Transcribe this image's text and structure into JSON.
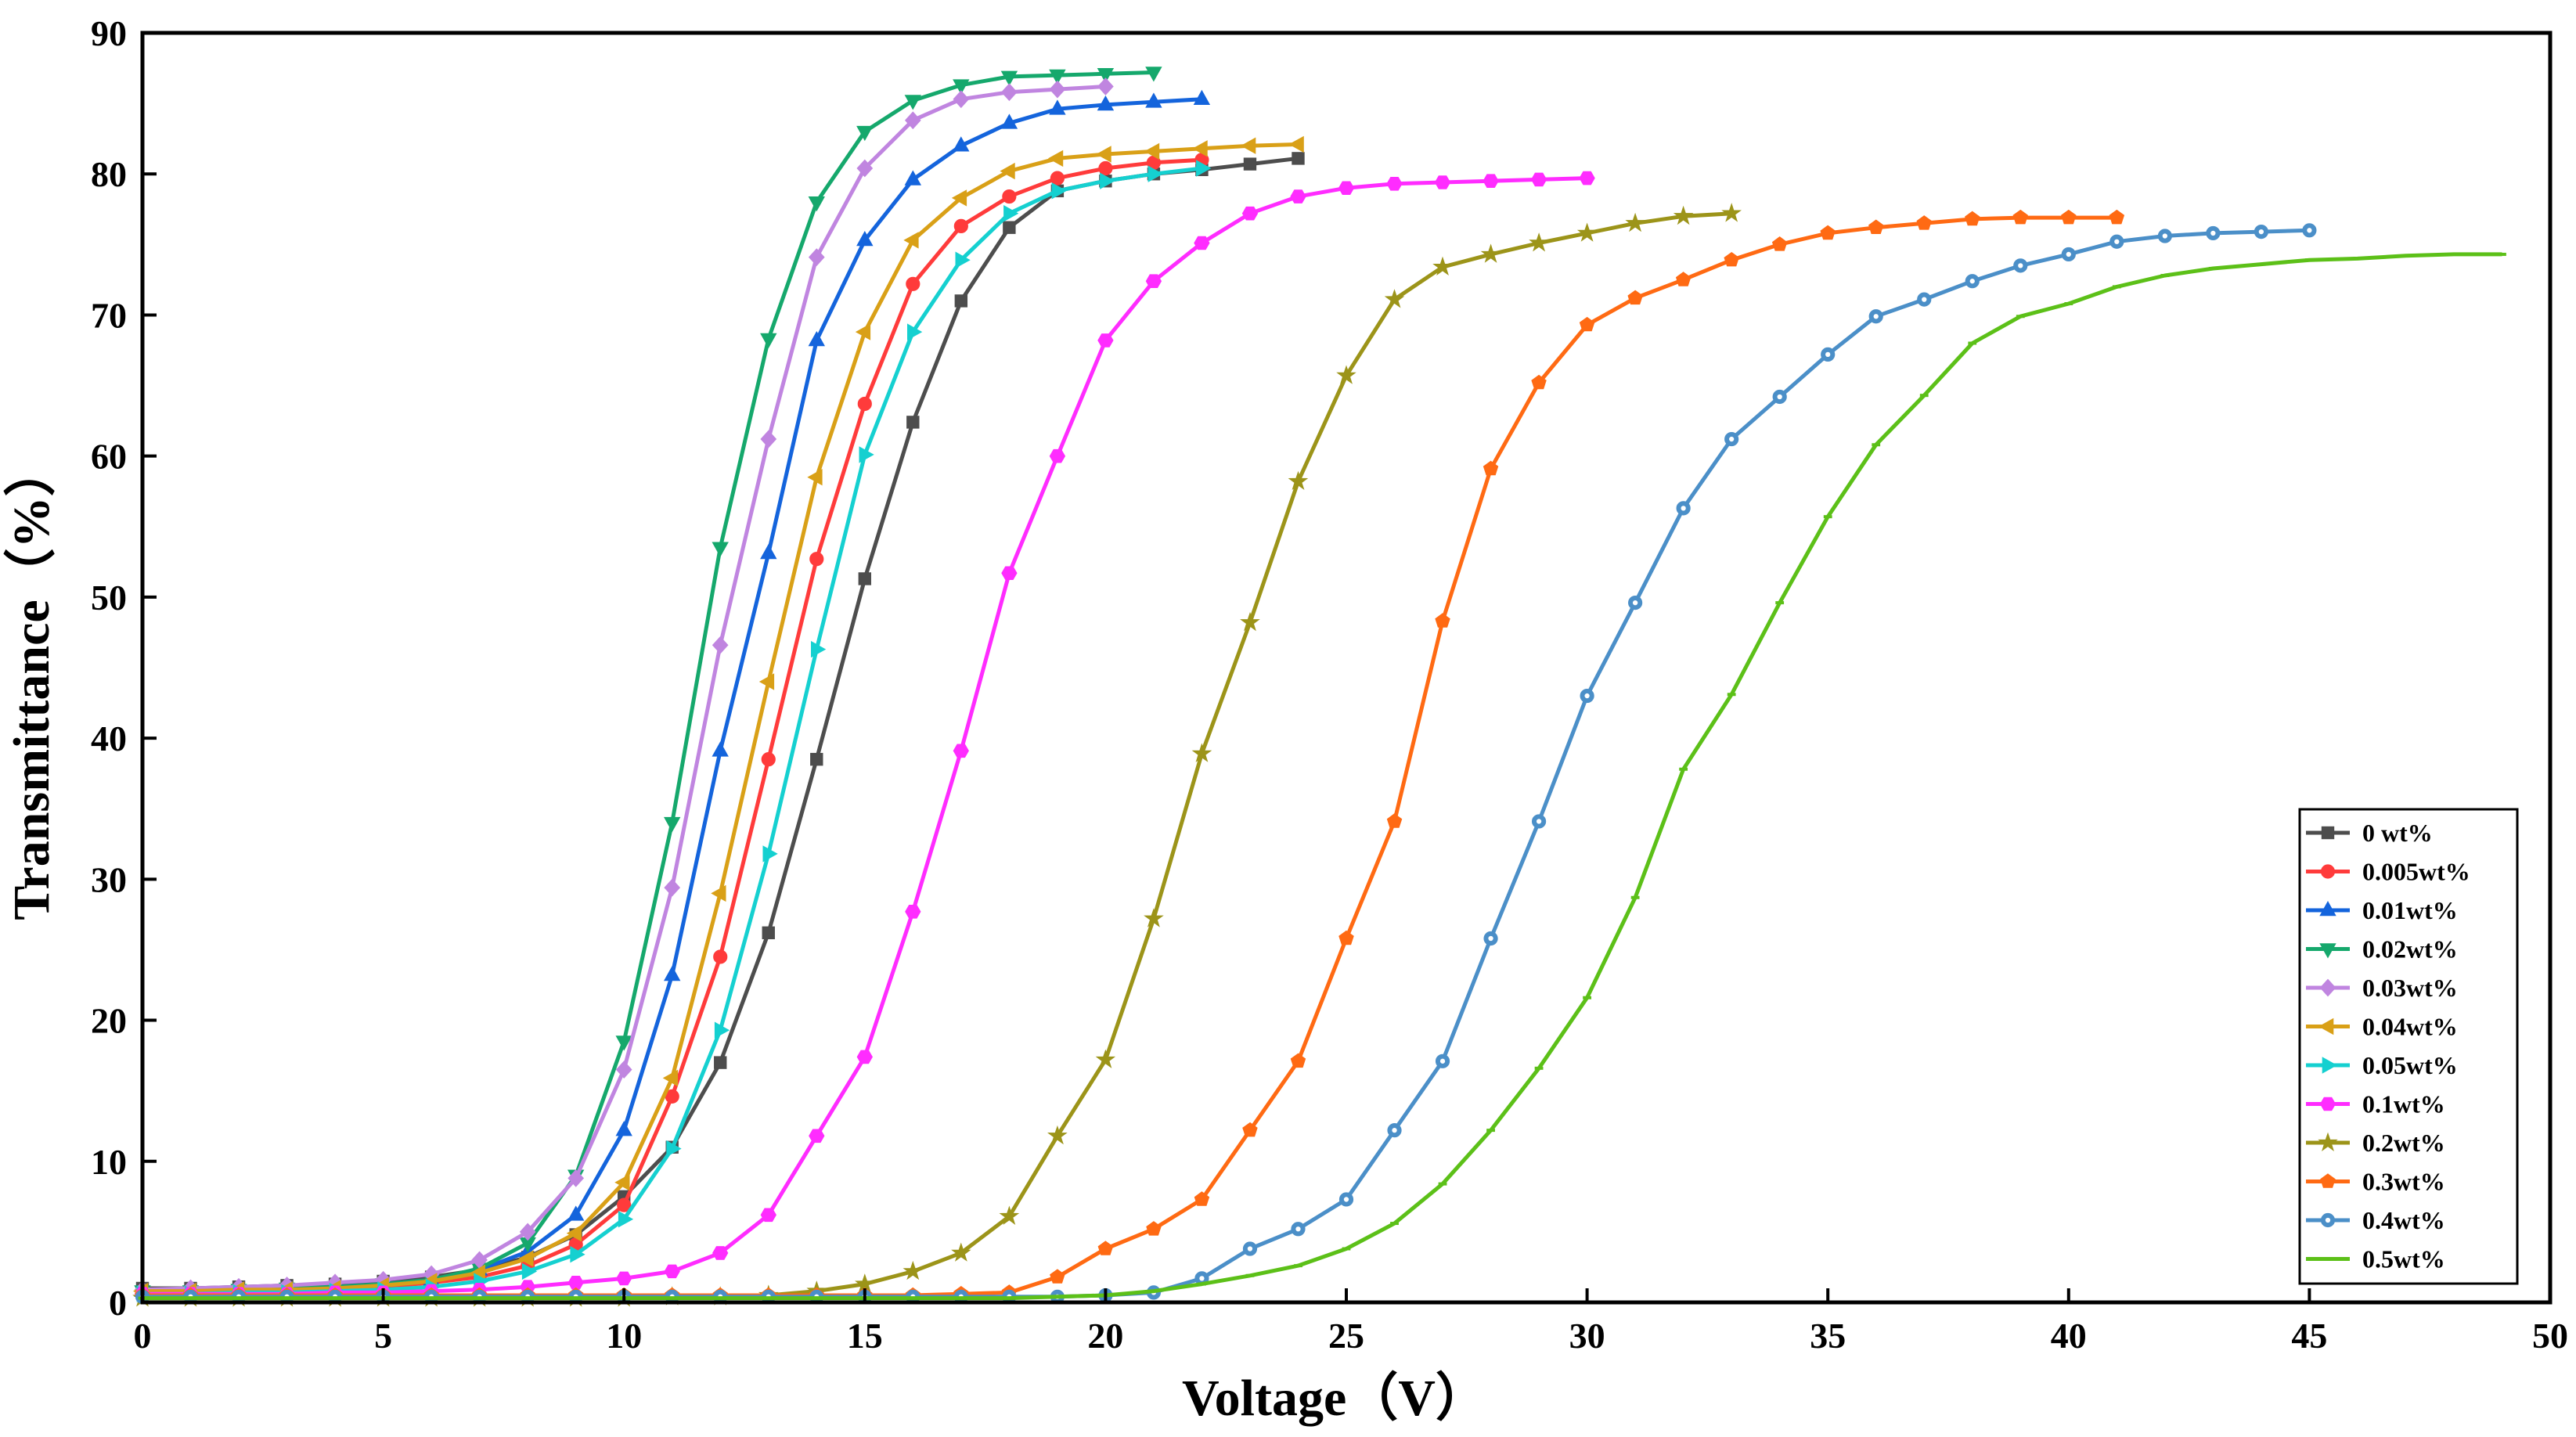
{
  "chart_data": {
    "type": "line",
    "title": "",
    "xlabel": "Voltage（V）",
    "ylabel": "Transmittance（%）",
    "xlim": [
      0,
      50
    ],
    "ylim": [
      0,
      90
    ],
    "xticks": [
      0,
      5,
      10,
      15,
      20,
      25,
      30,
      35,
      40,
      45,
      50
    ],
    "yticks": [
      0,
      10,
      20,
      30,
      40,
      50,
      60,
      70,
      80,
      90
    ],
    "grid": false,
    "legend_position": "bottom-right",
    "series": [
      {
        "name": "0 wt%",
        "color": "#4d4d4d",
        "marker": "square",
        "x": [
          0,
          1,
          2,
          3,
          4,
          5,
          6,
          7,
          8,
          9,
          10,
          11,
          12,
          13,
          14,
          15,
          16,
          17,
          18,
          19,
          20,
          21,
          22,
          23,
          24
        ],
        "y": [
          1.0,
          1.0,
          1.1,
          1.2,
          1.3,
          1.5,
          1.8,
          2.3,
          3.2,
          4.8,
          7.5,
          11.0,
          17.0,
          26.2,
          38.5,
          51.3,
          62.4,
          71.0,
          76.2,
          78.8,
          79.5,
          80.0,
          80.3,
          80.7,
          81.1
        ]
      },
      {
        "name": "0.005wt%",
        "color": "#ff3b3b",
        "marker": "circle",
        "x": [
          0,
          1,
          2,
          3,
          4,
          5,
          6,
          7,
          8,
          9,
          10,
          11,
          12,
          13,
          14,
          15,
          16,
          17,
          18,
          19,
          20,
          21,
          22
        ],
        "y": [
          0.8,
          0.8,
          0.9,
          0.9,
          1.0,
          1.1,
          1.4,
          1.8,
          2.6,
          4.1,
          6.9,
          14.6,
          24.5,
          38.5,
          52.7,
          63.7,
          72.2,
          76.3,
          78.4,
          79.7,
          80.4,
          80.8,
          81.0
        ]
      },
      {
        "name": "0.01wt%",
        "color": "#1464dc",
        "marker": "triangle-up",
        "x": [
          0,
          1,
          2,
          3,
          4,
          5,
          6,
          7,
          8,
          9,
          10,
          11,
          12,
          13,
          14,
          15,
          16,
          17,
          18,
          19,
          20,
          21,
          22
        ],
        "y": [
          0.8,
          0.8,
          0.9,
          1.0,
          1.1,
          1.3,
          1.6,
          2.3,
          3.6,
          6.2,
          12.2,
          23.2,
          39.1,
          53.1,
          68.2,
          75.3,
          79.6,
          82.0,
          83.6,
          84.6,
          84.9,
          85.1,
          85.3
        ]
      },
      {
        "name": "0.02wt%",
        "color": "#15a86c",
        "marker": "triangle-down",
        "x": [
          0,
          1,
          2,
          3,
          4,
          5,
          6,
          7,
          8,
          9,
          10,
          11,
          12,
          13,
          14,
          15,
          16,
          17,
          18,
          19,
          20,
          21
        ],
        "y": [
          0.8,
          0.8,
          0.9,
          1.0,
          1.1,
          1.3,
          1.6,
          2.4,
          4.2,
          9.0,
          18.5,
          34.0,
          53.5,
          68.3,
          78.0,
          83.0,
          85.2,
          86.3,
          86.9,
          87.0,
          87.1,
          87.2
        ]
      },
      {
        "name": "0.03wt%",
        "color": "#c085e0",
        "marker": "diamond",
        "x": [
          0,
          1,
          2,
          3,
          4,
          5,
          6,
          7,
          8,
          9,
          10,
          11,
          12,
          13,
          14,
          15,
          16,
          17,
          18,
          19,
          20
        ],
        "y": [
          0.9,
          1.0,
          1.1,
          1.2,
          1.4,
          1.6,
          2.0,
          3.0,
          5.0,
          8.8,
          16.5,
          29.4,
          46.6,
          61.2,
          74.1,
          80.4,
          83.8,
          85.3,
          85.8,
          86.0,
          86.2
        ]
      },
      {
        "name": "0.04wt%",
        "color": "#d9a017",
        "marker": "triangle-left",
        "x": [
          0,
          1,
          2,
          3,
          4,
          5,
          6,
          7,
          8,
          9,
          10,
          11,
          12,
          13,
          14,
          15,
          16,
          17,
          18,
          19,
          20,
          21,
          22,
          23,
          24
        ],
        "y": [
          0.8,
          0.8,
          0.9,
          0.9,
          1.0,
          1.2,
          1.5,
          2.1,
          3.1,
          4.9,
          8.5,
          15.9,
          29.0,
          44.0,
          58.5,
          68.8,
          75.3,
          78.3,
          80.2,
          81.1,
          81.4,
          81.6,
          81.8,
          82.0,
          82.1
        ]
      },
      {
        "name": "0.05wt%",
        "color": "#15d0d0",
        "marker": "triangle-right",
        "x": [
          0,
          1,
          2,
          3,
          4,
          5,
          6,
          7,
          8,
          9,
          10,
          11,
          12,
          13,
          14,
          15,
          16,
          17,
          18,
          19,
          20,
          21,
          22
        ],
        "y": [
          0.6,
          0.6,
          0.7,
          0.7,
          0.8,
          0.9,
          1.1,
          1.5,
          2.2,
          3.4,
          5.9,
          10.9,
          19.3,
          31.8,
          46.3,
          60.1,
          68.8,
          73.9,
          77.2,
          78.8,
          79.5,
          80.0,
          80.4
        ]
      },
      {
        "name": "0.1wt%",
        "color": "#ff2cff",
        "marker": "hexagon",
        "x": [
          0,
          1,
          2,
          3,
          4,
          5,
          6,
          7,
          8,
          9,
          10,
          11,
          12,
          13,
          14,
          15,
          16,
          17,
          18,
          19,
          20,
          21,
          22,
          23,
          24,
          25,
          26,
          27,
          28,
          29,
          30
        ],
        "y": [
          0.6,
          0.6,
          0.6,
          0.6,
          0.7,
          0.7,
          0.8,
          0.9,
          1.1,
          1.4,
          1.7,
          2.2,
          3.5,
          6.2,
          11.8,
          17.4,
          27.7,
          39.1,
          51.7,
          60.0,
          68.2,
          72.4,
          75.1,
          77.2,
          78.4,
          79.0,
          79.3,
          79.4,
          79.5,
          79.6,
          79.7
        ]
      },
      {
        "name": "0.2wt%",
        "color": "#9c9419",
        "marker": "star",
        "x": [
          0,
          1,
          2,
          3,
          4,
          5,
          6,
          7,
          8,
          9,
          10,
          11,
          12,
          13,
          14,
          15,
          16,
          17,
          18,
          19,
          20,
          21,
          22,
          23,
          24,
          25,
          26,
          27,
          28,
          29,
          30,
          31,
          32,
          33
        ],
        "y": [
          0.3,
          0.3,
          0.3,
          0.3,
          0.3,
          0.3,
          0.3,
          0.3,
          0.3,
          0.3,
          0.3,
          0.4,
          0.4,
          0.5,
          0.8,
          1.3,
          2.2,
          3.5,
          6.1,
          11.8,
          17.2,
          27.2,
          38.9,
          48.2,
          58.2,
          65.7,
          71.1,
          73.4,
          74.3,
          75.1,
          75.8,
          76.5,
          77.0,
          77.2
        ]
      },
      {
        "name": "0.3wt%",
        "color": "#ff6a13",
        "marker": "pentagon",
        "x": [
          0,
          1,
          2,
          3,
          4,
          5,
          6,
          7,
          8,
          9,
          10,
          11,
          12,
          13,
          14,
          15,
          16,
          17,
          18,
          19,
          20,
          21,
          22,
          23,
          24,
          25,
          26,
          27,
          28,
          29,
          30,
          31,
          32,
          33,
          34,
          35,
          36,
          37,
          38,
          39,
          40,
          41
        ],
        "y": [
          0.5,
          0.5,
          0.5,
          0.5,
          0.5,
          0.5,
          0.5,
          0.5,
          0.5,
          0.5,
          0.5,
          0.5,
          0.5,
          0.5,
          0.5,
          0.5,
          0.5,
          0.6,
          0.7,
          1.8,
          3.8,
          5.2,
          7.3,
          12.2,
          17.1,
          25.8,
          34.1,
          48.3,
          59.1,
          65.2,
          69.3,
          71.2,
          72.5,
          73.9,
          75.0,
          75.8,
          76.2,
          76.5,
          76.8,
          76.9,
          76.9,
          76.9
        ]
      },
      {
        "name": "0.4wt%",
        "color": "#4b8fc8",
        "marker": "circle-dot",
        "x": [
          0,
          1,
          2,
          3,
          4,
          5,
          6,
          7,
          8,
          9,
          10,
          11,
          12,
          13,
          14,
          15,
          16,
          17,
          18,
          19,
          20,
          21,
          22,
          23,
          24,
          25,
          26,
          27,
          28,
          29,
          30,
          31,
          32,
          33,
          34,
          35,
          36,
          37,
          38,
          39,
          40,
          41,
          42,
          43,
          44,
          45
        ],
        "y": [
          0.4,
          0.4,
          0.4,
          0.4,
          0.4,
          0.4,
          0.4,
          0.4,
          0.4,
          0.4,
          0.4,
          0.4,
          0.4,
          0.4,
          0.4,
          0.4,
          0.4,
          0.4,
          0.4,
          0.4,
          0.5,
          0.7,
          1.7,
          3.8,
          5.2,
          7.3,
          12.2,
          17.1,
          25.8,
          34.1,
          43.0,
          49.6,
          56.3,
          61.2,
          64.2,
          67.2,
          69.9,
          71.1,
          72.4,
          73.5,
          74.3,
          75.2,
          75.6,
          75.8,
          75.9,
          76.0
        ]
      },
      {
        "name": "0.5wt%",
        "color": "#5cc018",
        "marker": "dash",
        "x": [
          0,
          1,
          2,
          3,
          4,
          5,
          6,
          7,
          8,
          9,
          10,
          11,
          12,
          13,
          14,
          15,
          16,
          17,
          18,
          19,
          20,
          21,
          22,
          23,
          24,
          25,
          26,
          27,
          28,
          29,
          30,
          31,
          32,
          33,
          34,
          35,
          36,
          37,
          38,
          39,
          40,
          41,
          42,
          43,
          44,
          45,
          46,
          47,
          48,
          49
        ],
        "y": [
          0.3,
          0.3,
          0.3,
          0.3,
          0.3,
          0.3,
          0.3,
          0.3,
          0.3,
          0.3,
          0.3,
          0.3,
          0.3,
          0.3,
          0.3,
          0.3,
          0.3,
          0.3,
          0.3,
          0.4,
          0.5,
          0.8,
          1.3,
          1.9,
          2.6,
          3.8,
          5.6,
          8.4,
          12.2,
          16.6,
          21.6,
          28.7,
          37.8,
          43.1,
          49.6,
          55.7,
          60.8,
          64.3,
          68.0,
          69.9,
          70.8,
          72.0,
          72.8,
          73.3,
          73.6,
          73.9,
          74.0,
          74.2,
          74.3,
          74.3
        ]
      }
    ]
  }
}
